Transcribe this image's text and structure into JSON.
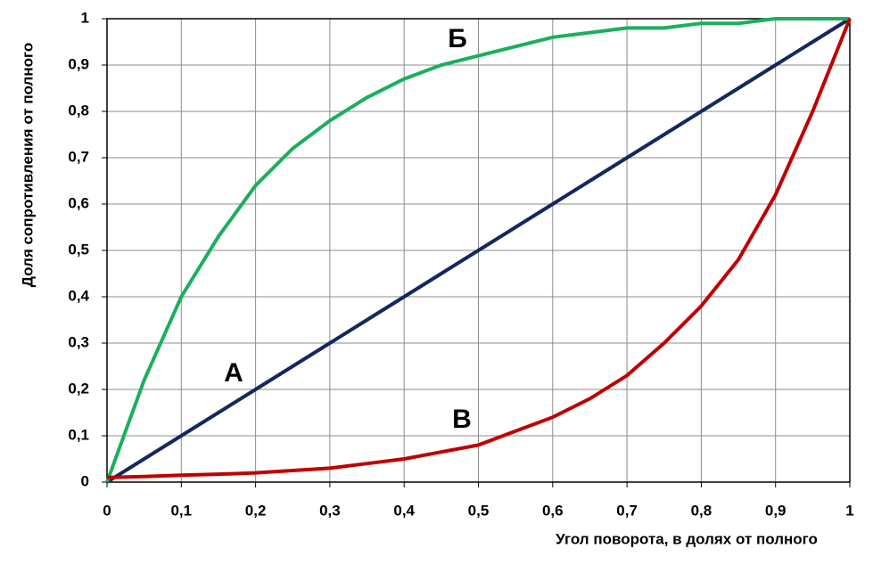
{
  "chart_data": {
    "type": "line",
    "x_label": "Угол поворота, в долях от полного",
    "y_label": "Доля сопротивления от полного",
    "x": [
      0,
      0.05,
      0.1,
      0.15,
      0.2,
      0.25,
      0.3,
      0.35,
      0.4,
      0.45,
      0.5,
      0.55,
      0.6,
      0.65,
      0.7,
      0.75,
      0.8,
      0.85,
      0.9,
      0.95,
      1
    ],
    "series": [
      {
        "name": "А",
        "color": "#14285e",
        "values": [
          0,
          0.05,
          0.1,
          0.15,
          0.2,
          0.25,
          0.3,
          0.35,
          0.4,
          0.45,
          0.5,
          0.55,
          0.6,
          0.65,
          0.7,
          0.75,
          0.8,
          0.85,
          0.9,
          0.95,
          1
        ]
      },
      {
        "name": "Б",
        "color": "#1aaf5d",
        "values": [
          0,
          0.22,
          0.4,
          0.53,
          0.64,
          0.72,
          0.78,
          0.83,
          0.87,
          0.9,
          0.92,
          0.94,
          0.96,
          0.97,
          0.98,
          0.98,
          0.99,
          0.99,
          1,
          1,
          1
        ]
      },
      {
        "name": "В",
        "color": "#c00000",
        "values": [
          0.01,
          0.012,
          0.015,
          0.017,
          0.02,
          0.025,
          0.03,
          0.04,
          0.05,
          0.065,
          0.08,
          0.11,
          0.14,
          0.18,
          0.23,
          0.3,
          0.38,
          0.48,
          0.62,
          0.8,
          1
        ]
      }
    ],
    "xlim": [
      0,
      1
    ],
    "ylim": [
      0,
      1
    ],
    "xticks": [
      0,
      {
        "value": 0.1,
        "label": "0,1"
      },
      {
        "value": 0.2,
        "label": "0,2"
      },
      {
        "value": 0.3,
        "label": "0,3"
      },
      {
        "value": 0.4,
        "label": "0,4"
      },
      {
        "value": 0.5,
        "label": "0,5"
      },
      {
        "value": 0.6,
        "label": "0,6"
      },
      {
        "value": 0.7,
        "label": "0,7"
      },
      {
        "value": 0.8,
        "label": "0,8"
      },
      {
        "value": 0.9,
        "label": "0,9"
      },
      1
    ],
    "yticks": [
      0,
      {
        "value": 0.1,
        "label": "0,1"
      },
      {
        "value": 0.2,
        "label": "0,2"
      },
      {
        "value": 0.3,
        "label": "0,3"
      },
      {
        "value": 0.4,
        "label": "0,4"
      },
      {
        "value": 0.5,
        "label": "0,5"
      },
      {
        "value": 0.6,
        "label": "0,6"
      },
      {
        "value": 0.7,
        "label": "0,7"
      },
      {
        "value": 0.8,
        "label": "0,8"
      },
      {
        "value": 0.9,
        "label": "0,9"
      },
      1
    ],
    "grid": true
  }
}
